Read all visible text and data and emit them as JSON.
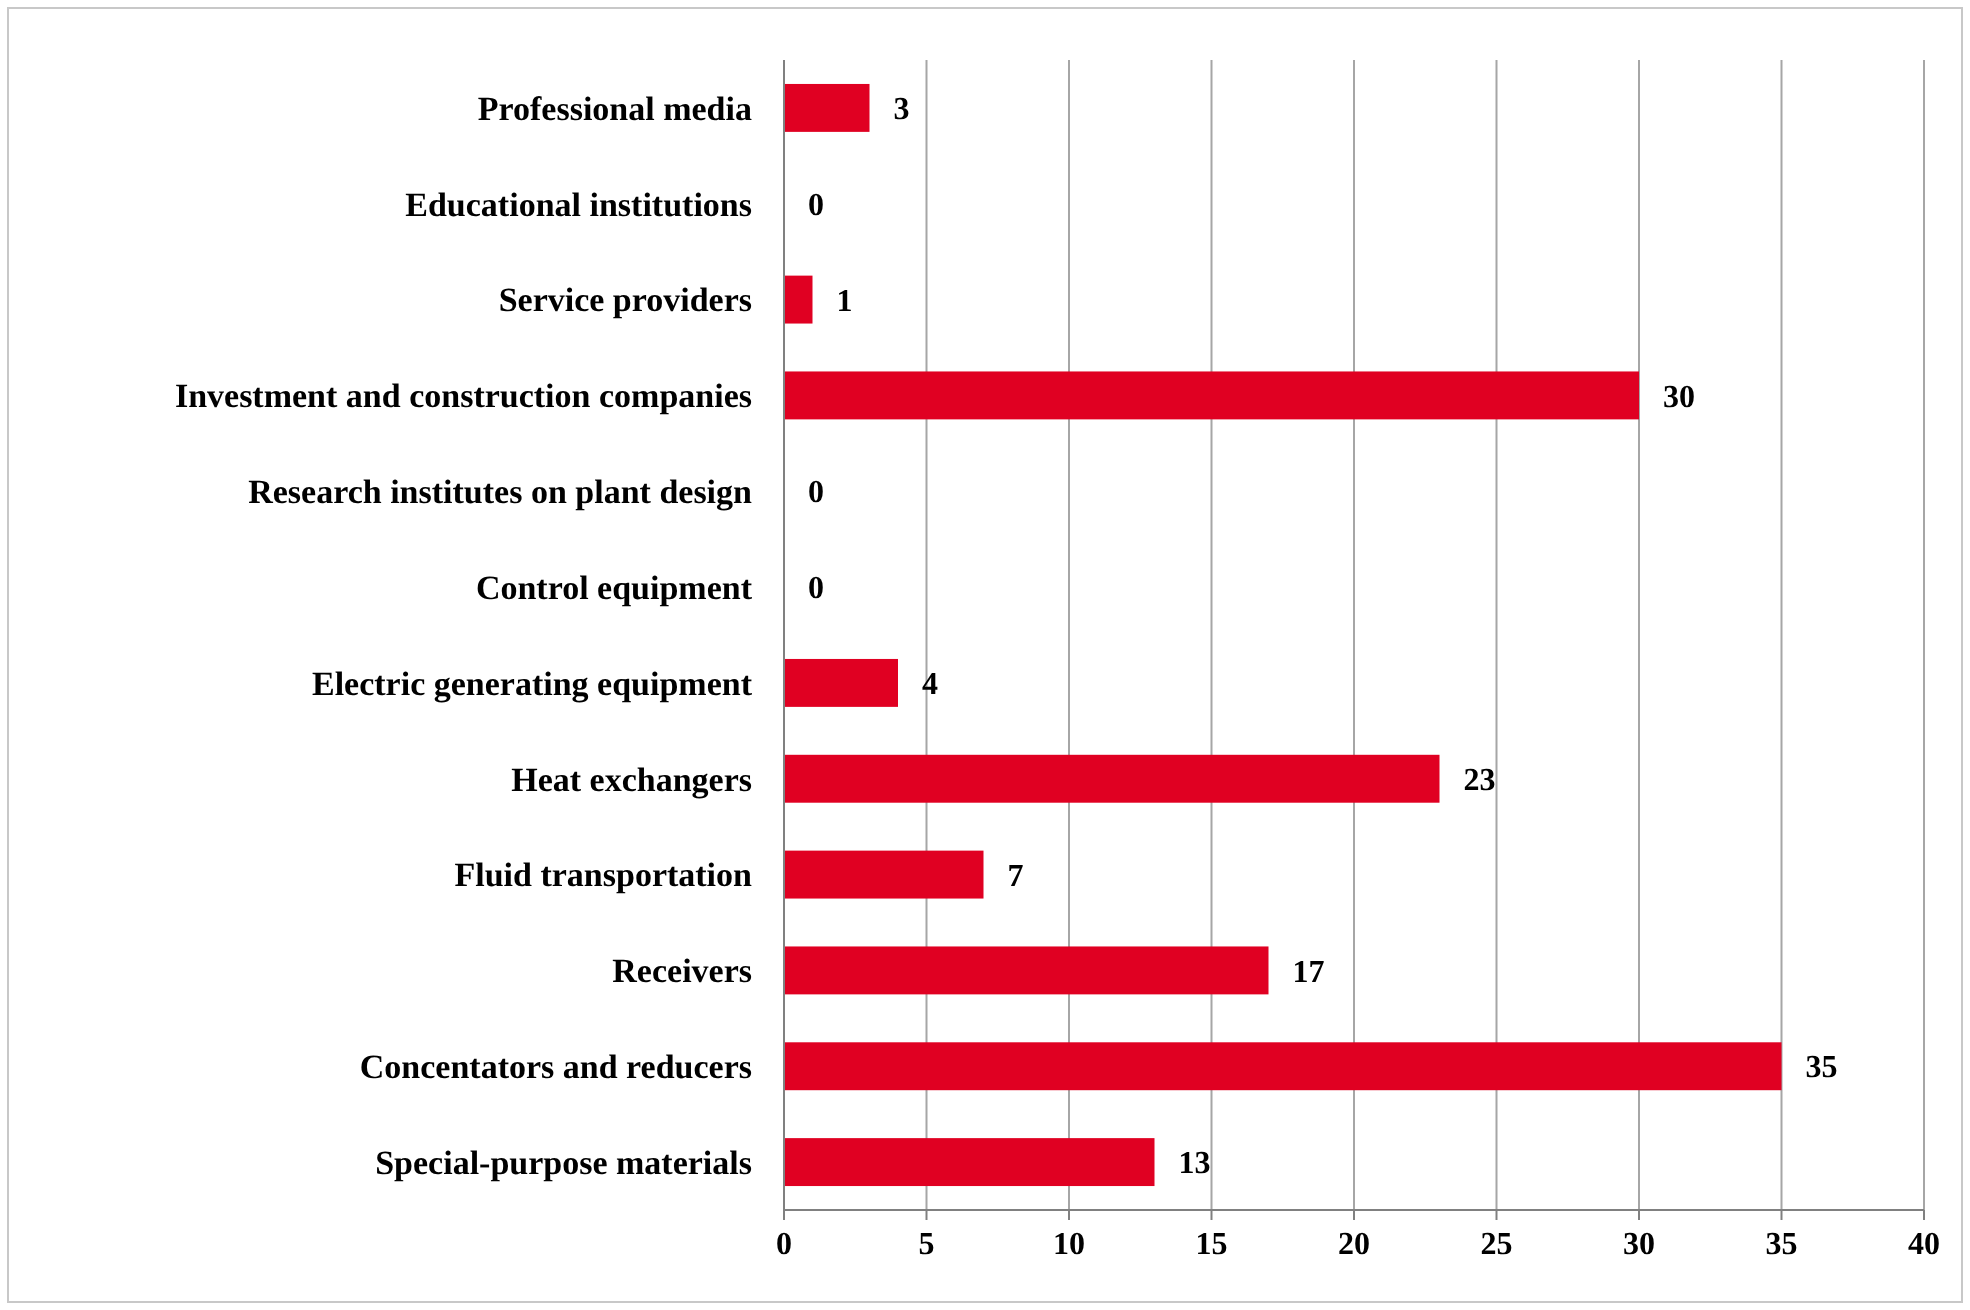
{
  "chart_data": {
    "type": "bar",
    "orientation": "horizontal",
    "categories": [
      "Professional media",
      "Educational institutions",
      "Service providers",
      "Investment and construction companies",
      "Research institutes on plant design",
      "Control equipment",
      "Electric generating equipment",
      "Heat exchangers",
      "Fluid transportation",
      "Receivers",
      "Concentators and reducers",
      "Special-purpose materials"
    ],
    "values": [
      3,
      0,
      1,
      30,
      0,
      0,
      4,
      23,
      7,
      17,
      35,
      13
    ],
    "color": "#e00022",
    "xlim": [
      0,
      40
    ],
    "xticks": [
      0,
      5,
      10,
      15,
      20,
      25,
      30,
      35,
      40
    ],
    "grid": "x",
    "data_labels": true
  }
}
